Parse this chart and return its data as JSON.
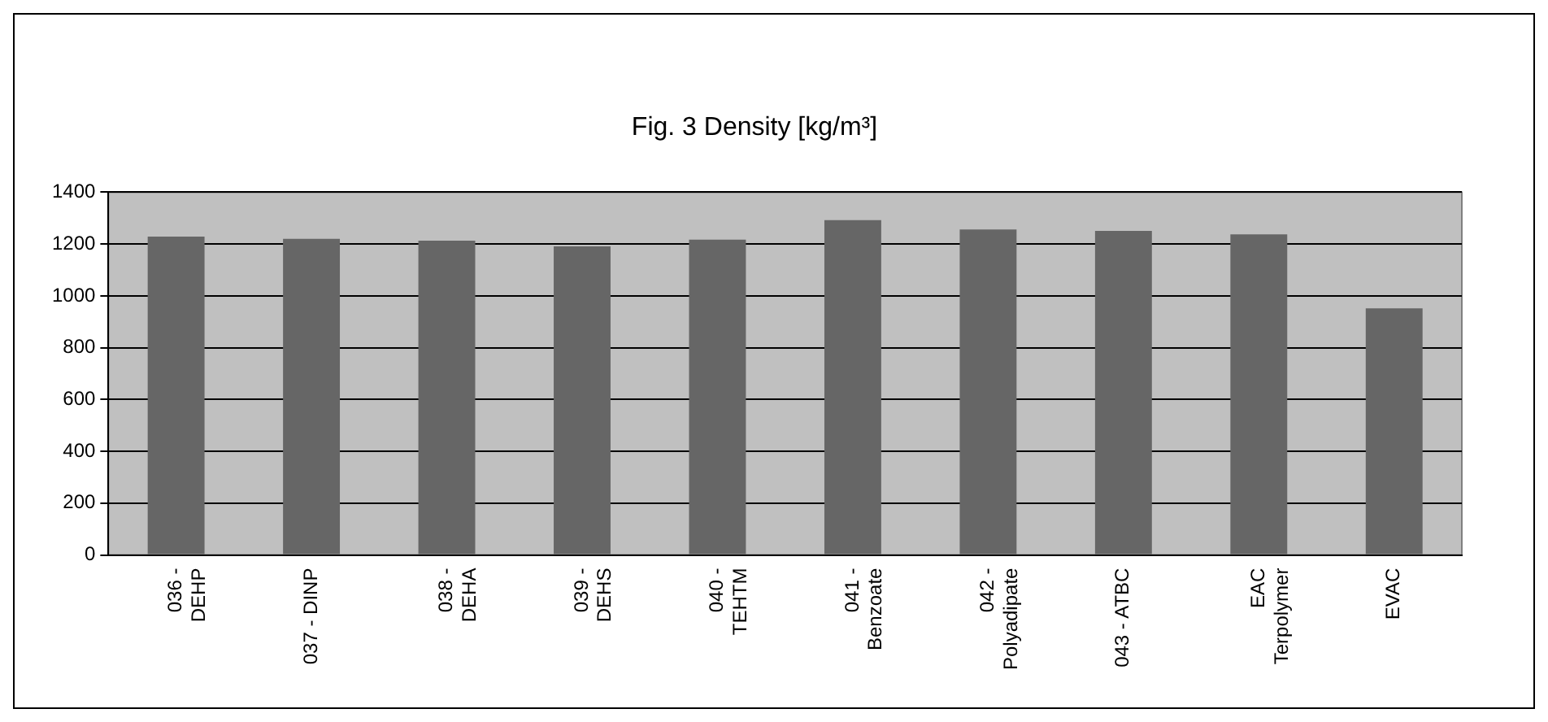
{
  "chart_data": {
    "type": "bar",
    "title": "Fig. 3 Density [kg/m³]",
    "categories": [
      "036 - DEHP",
      "037 - DINP",
      "038 - DEHA",
      "039 - DEHS",
      "040 - TEHTM",
      "041 - Benzoate",
      "042 - Polyadipate",
      "043 - ATBC",
      "EAC Terpolymer",
      "EVAC"
    ],
    "values": [
      1229,
      1220,
      1213,
      1191,
      1217,
      1292,
      1256,
      1251,
      1237,
      952
    ],
    "color": "#666666",
    "ylim": [
      0,
      1400
    ],
    "yticks": [
      0,
      200,
      400,
      600,
      800,
      1000,
      1200,
      1400
    ],
    "grid": "y",
    "legend": false
  }
}
